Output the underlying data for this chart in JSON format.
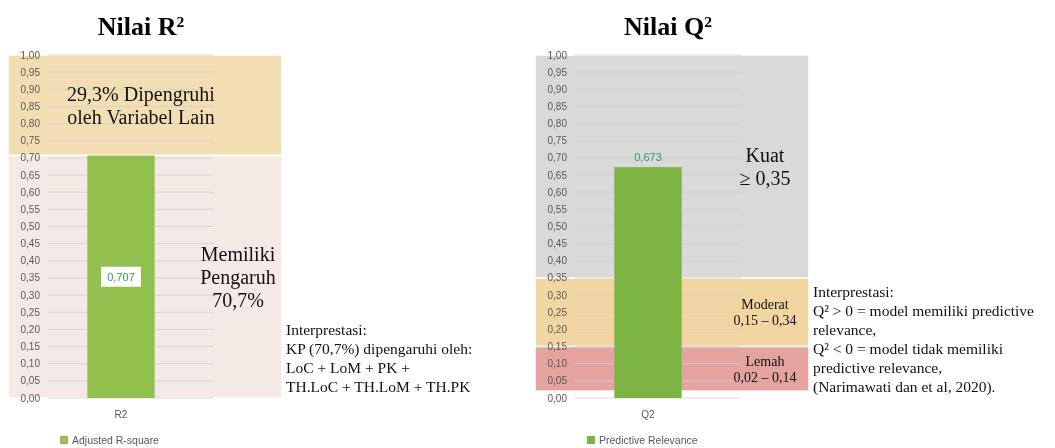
{
  "chart_data": [
    {
      "type": "bar",
      "title": "Nilai R$^{2}$",
      "categories": [
        "R2"
      ],
      "series": [
        {
          "name": "Adjusted R-square",
          "color": "#92c04f",
          "values": [
            0.707
          ]
        }
      ],
      "ylim": [
        0,
        1
      ],
      "yticks": [
        {
          "value": 0,
          "label": "0,00"
        },
        {
          "value": 0.05,
          "label": "0,05"
        },
        {
          "value": 0.1,
          "label": "0,10"
        },
        {
          "value": 0.15,
          "label": "0,15"
        },
        {
          "value": 0.2,
          "label": "0,20"
        },
        {
          "value": 0.25,
          "label": "0,25"
        },
        {
          "value": 0.3,
          "label": "0,30"
        },
        {
          "value": 0.35,
          "label": "0,35"
        },
        {
          "value": 0.4,
          "label": "0,40"
        },
        {
          "value": 0.45,
          "label": "0,45"
        },
        {
          "value": 0.5,
          "label": "0,50"
        },
        {
          "value": 0.55,
          "label": "0,55"
        },
        {
          "value": 0.6,
          "label": "0,60"
        },
        {
          "value": 0.65,
          "label": "0,65"
        },
        {
          "value": 0.7,
          "label": "0,70"
        },
        {
          "value": 0.75,
          "label": "0,75"
        },
        {
          "value": 0.8,
          "label": "0,80"
        },
        {
          "value": 0.85,
          "label": "0,85"
        },
        {
          "value": 0.9,
          "label": "0,90"
        },
        {
          "value": 0.95,
          "label": "0,95"
        },
        {
          "value": 1,
          "label": "1,00"
        }
      ],
      "grid": "y",
      "legend": "bottom left",
      "value_labels": [
        "0,707"
      ],
      "bands": [
        {
          "axis": "y",
          "from": 0.707,
          "to": 1,
          "label": "29,3% Dipengruhi oleh Variabel Lain",
          "color": "#f3deb3"
        },
        {
          "axis": "y",
          "from": 0,
          "to": 0.707,
          "label": "Memiliki Pengaruh 70,7%",
          "color": "#f5e9e5"
        }
      ],
      "annotations": [
        "Interprestasi:",
        "KP (70,7%) dipengaruhi oleh:",
        "LoC + LoM + PK +",
        "TH.LoC + TH.LoM + TH.PK"
      ]
    },
    {
      "type": "bar",
      "title": "Nilai Q$^{2}$",
      "categories": [
        "Q2"
      ],
      "series": [
        {
          "name": "Predictive Relevance",
          "color": "#7db343",
          "values": [
            0.673
          ]
        }
      ],
      "ylim": [
        0,
        1
      ],
      "yticks": [
        {
          "value": 0,
          "label": "0,00"
        },
        {
          "value": 0.05,
          "label": "0,05"
        },
        {
          "value": 0.1,
          "label": "0,10"
        },
        {
          "value": 0.15,
          "label": "0,15"
        },
        {
          "value": 0.2,
          "label": "0,20"
        },
        {
          "value": 0.25,
          "label": "0,25"
        },
        {
          "value": 0.3,
          "label": "0,30"
        },
        {
          "value": 0.35,
          "label": "0,35"
        },
        {
          "value": 0.4,
          "label": "0,40"
        },
        {
          "value": 0.45,
          "label": "0,45"
        },
        {
          "value": 0.5,
          "label": "0,50"
        },
        {
          "value": 0.55,
          "label": "0,55"
        },
        {
          "value": 0.6,
          "label": "0,60"
        },
        {
          "value": 0.65,
          "label": "0,65"
        },
        {
          "value": 0.7,
          "label": "0,70"
        },
        {
          "value": 0.75,
          "label": "0,75"
        },
        {
          "value": 0.8,
          "label": "0,80"
        },
        {
          "value": 0.85,
          "label": "0,85"
        },
        {
          "value": 0.9,
          "label": "0,90"
        },
        {
          "value": 0.95,
          "label": "0,95"
        },
        {
          "value": 1,
          "label": "1,00"
        }
      ],
      "grid": "y",
      "legend": "bottom left",
      "value_labels": [
        "0,673"
      ],
      "bands": [
        {
          "axis": "y",
          "from": 0.35,
          "to": 1,
          "label": "Kuat ≥ 0,35",
          "color": "#d9d9d9"
        },
        {
          "axis": "y",
          "from": 0.15,
          "to": 0.35,
          "label": "Moderat 0,15 – 0,34",
          "color": "#f1d6a1"
        },
        {
          "axis": "y",
          "from": 0.02,
          "to": 0.15,
          "label": "Lemah 0,02 – 0,14",
          "color": "#e5a39d"
        }
      ],
      "annotations": [
        "Interprestasi:",
        "Q² > 0 = model memiliki predictive",
        "relevance,",
        "Q² < 0 = model tidak memiliki",
        "predictive relevance,",
        "(Narimawati dan et al, 2020)."
      ]
    }
  ]
}
